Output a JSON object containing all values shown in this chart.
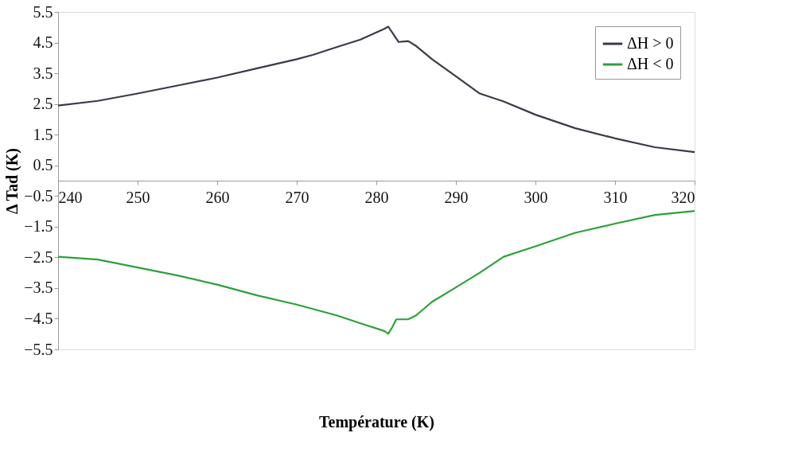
{
  "chart_data": {
    "type": "line",
    "xlabel": "Température (K)",
    "ylabel": "Δ Tad (K)",
    "xlim": [
      240,
      320
    ],
    "xticks": [
      240,
      250,
      260,
      270,
      280,
      290,
      300,
      310,
      320
    ],
    "ylim": [
      -5.5,
      5.5
    ],
    "yticks": [
      -5.5,
      -4.5,
      -3.5,
      -2.5,
      -1.5,
      -0.5,
      0.5,
      1.5,
      2.5,
      3.5,
      4.5,
      5.5
    ],
    "grid": false,
    "legend": "top right",
    "marker": "none",
    "line_style": "solid",
    "series": [
      {
        "name": "ΔH > 0",
        "color": "#3a3a48",
        "x": [
          240,
          245,
          250,
          255,
          260,
          265,
          270,
          272,
          275,
          278,
          281,
          281.5,
          282,
          282.8,
          284,
          285,
          287,
          290,
          293,
          296,
          300,
          305,
          310,
          315,
          320
        ],
        "values": [
          2.45,
          2.6,
          2.84,
          3.1,
          3.36,
          3.66,
          3.96,
          4.1,
          4.35,
          4.6,
          4.95,
          5.02,
          4.83,
          4.52,
          4.55,
          4.39,
          3.96,
          3.4,
          2.84,
          2.58,
          2.15,
          1.71,
          1.38,
          1.09,
          0.93
        ]
      },
      {
        "name": "ΔH < 0",
        "color": "#2ea03a",
        "x": [
          240,
          245,
          250,
          255,
          260,
          265,
          270,
          275,
          278,
          281,
          281.5,
          282,
          282.5,
          284,
          285,
          287,
          290,
          293,
          296,
          300,
          305,
          310,
          315,
          320
        ],
        "values": [
          -2.48,
          -2.57,
          -2.83,
          -3.09,
          -3.39,
          -3.74,
          -4.04,
          -4.39,
          -4.65,
          -4.9,
          -4.99,
          -4.78,
          -4.52,
          -4.52,
          -4.39,
          -3.95,
          -3.48,
          -3.0,
          -2.48,
          -2.14,
          -1.7,
          -1.4,
          -1.12,
          -0.99
        ]
      }
    ]
  }
}
